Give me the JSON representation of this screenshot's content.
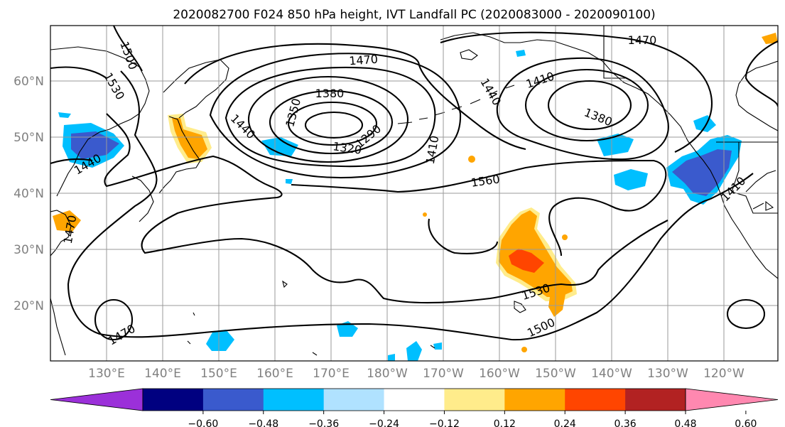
{
  "title": "2020082700 F024 850 hPa height, IVT Landfall PC (2020083000 - 2020090100)",
  "map": {
    "lat_labels": [
      "60°N",
      "50°N",
      "40°N",
      "30°N",
      "20°N"
    ],
    "lon_labels": [
      "130°E",
      "140°E",
      "150°E",
      "160°E",
      "170°E",
      "180°W",
      "170°W",
      "160°W",
      "150°W",
      "140°W",
      "130°W",
      "120°W"
    ],
    "contour_labels": [
      "1470",
      "1500",
      "1530",
      "1380",
      "1350",
      "1440",
      "1320",
      "1290",
      "1410",
      "1560",
      "1440",
      "1470",
      "1410",
      "1380",
      "1470",
      "1440",
      "1410",
      "1530",
      "1500",
      "1470"
    ]
  },
  "colorbar": {
    "colors": [
      "#9b30d9",
      "#000080",
      "#3a5acd",
      "#00bfff",
      "#b0e2ff",
      "#ffffff",
      "#ffec8b",
      "#ffa500",
      "#ff4500",
      "#b22222",
      "#ff88b0"
    ],
    "tick_labels": [
      "−0.60",
      "−0.48",
      "−0.36",
      "−0.24",
      "−0.12",
      "0.12",
      "0.24",
      "0.36",
      "0.48",
      "0.60"
    ]
  },
  "legend_colors": {
    "neg_dark": "#3a5acd",
    "neg_mid": "#00bfff",
    "neg_light": "#b0e2ff",
    "pos_light": "#ffec8b",
    "pos_mid": "#ffa500",
    "pos_dark": "#ff4500"
  }
}
